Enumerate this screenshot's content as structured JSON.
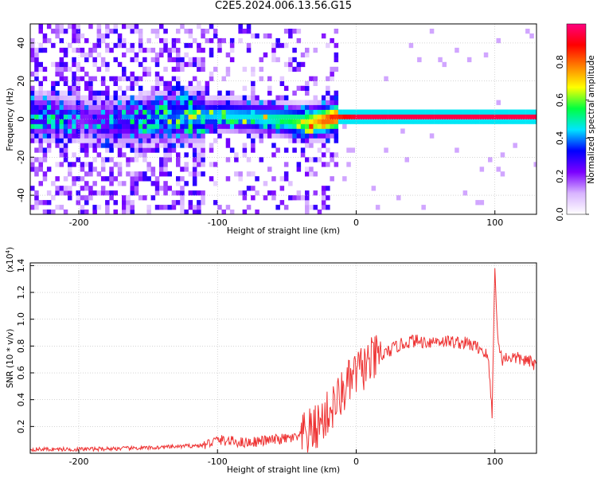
{
  "title": "C2E5.2024.006.13.56.G15",
  "chart_data": [
    {
      "type": "heatmap",
      "title": "C2E5.2024.006.13.56.G15",
      "xlabel": "Height of straight line (km)",
      "ylabel": "Frequency (Hz)",
      "xlim": [
        -235,
        130
      ],
      "ylim": [
        -50,
        50
      ],
      "x_ticks": [
        -200,
        -100,
        0,
        100
      ],
      "y_ticks": [
        -40,
        -20,
        0,
        20,
        40
      ],
      "grid": true,
      "colorbar": {
        "label": "Normalized spectral amplitude",
        "range": [
          0,
          1
        ],
        "ticks": [
          0.0,
          0.2,
          0.4,
          0.6,
          0.8
        ],
        "colors": [
          "#ffffff",
          "#d8b4ff",
          "#7b00ff",
          "#0000ff",
          "#00e5ff",
          "#00ff40",
          "#ffff00",
          "#ff8000",
          "#ff0000",
          "#ff007f"
        ]
      },
      "ridge": {
        "x": [
          -225,
          -200,
          -180,
          -160,
          -140,
          -120,
          -100,
          -80,
          -60,
          -40,
          -25,
          -15,
          0,
          50,
          100,
          130
        ],
        "y": [
          0,
          -1,
          -3,
          -2,
          0,
          0,
          1,
          0,
          -1,
          -3,
          -2,
          0,
          0,
          0,
          0,
          0
        ],
        "amplitude": [
          0.3,
          0.2,
          0.25,
          0.3,
          0.35,
          0.4,
          0.45,
          0.45,
          0.5,
          0.6,
          0.8,
          0.85,
          0.95,
          0.95,
          0.95,
          0.95
        ]
      }
    },
    {
      "type": "line",
      "ylabel": "SNR (10 * v/v)",
      "multiplier": "(x10^4)",
      "xlabel": "Height of straight line (km)",
      "xlim": [
        -235,
        130
      ],
      "ylim": [
        0,
        1.42
      ],
      "x_ticks": [
        -200,
        -100,
        0,
        100
      ],
      "y_ticks": [
        0.2,
        0.4,
        0.6,
        0.8,
        1.0,
        1.2,
        1.4
      ],
      "grid": true,
      "color": "#ee3333",
      "series": [
        {
          "x": [
            -235,
            -200,
            -150,
            -110,
            -100,
            -90,
            -80,
            -60,
            -40,
            -30,
            -20,
            -10,
            0,
            10,
            20,
            30,
            40,
            50,
            60,
            70,
            80,
            90,
            95,
            98,
            100,
            102,
            105,
            110,
            120,
            130
          ],
          "y": [
            0.03,
            0.03,
            0.04,
            0.06,
            0.1,
            0.09,
            0.08,
            0.1,
            0.12,
            0.18,
            0.3,
            0.45,
            0.6,
            0.68,
            0.74,
            0.8,
            0.84,
            0.83,
            0.84,
            0.83,
            0.82,
            0.78,
            0.72,
            0.3,
            1.42,
            0.85,
            0.7,
            0.72,
            0.7,
            0.66
          ]
        }
      ]
    }
  ]
}
